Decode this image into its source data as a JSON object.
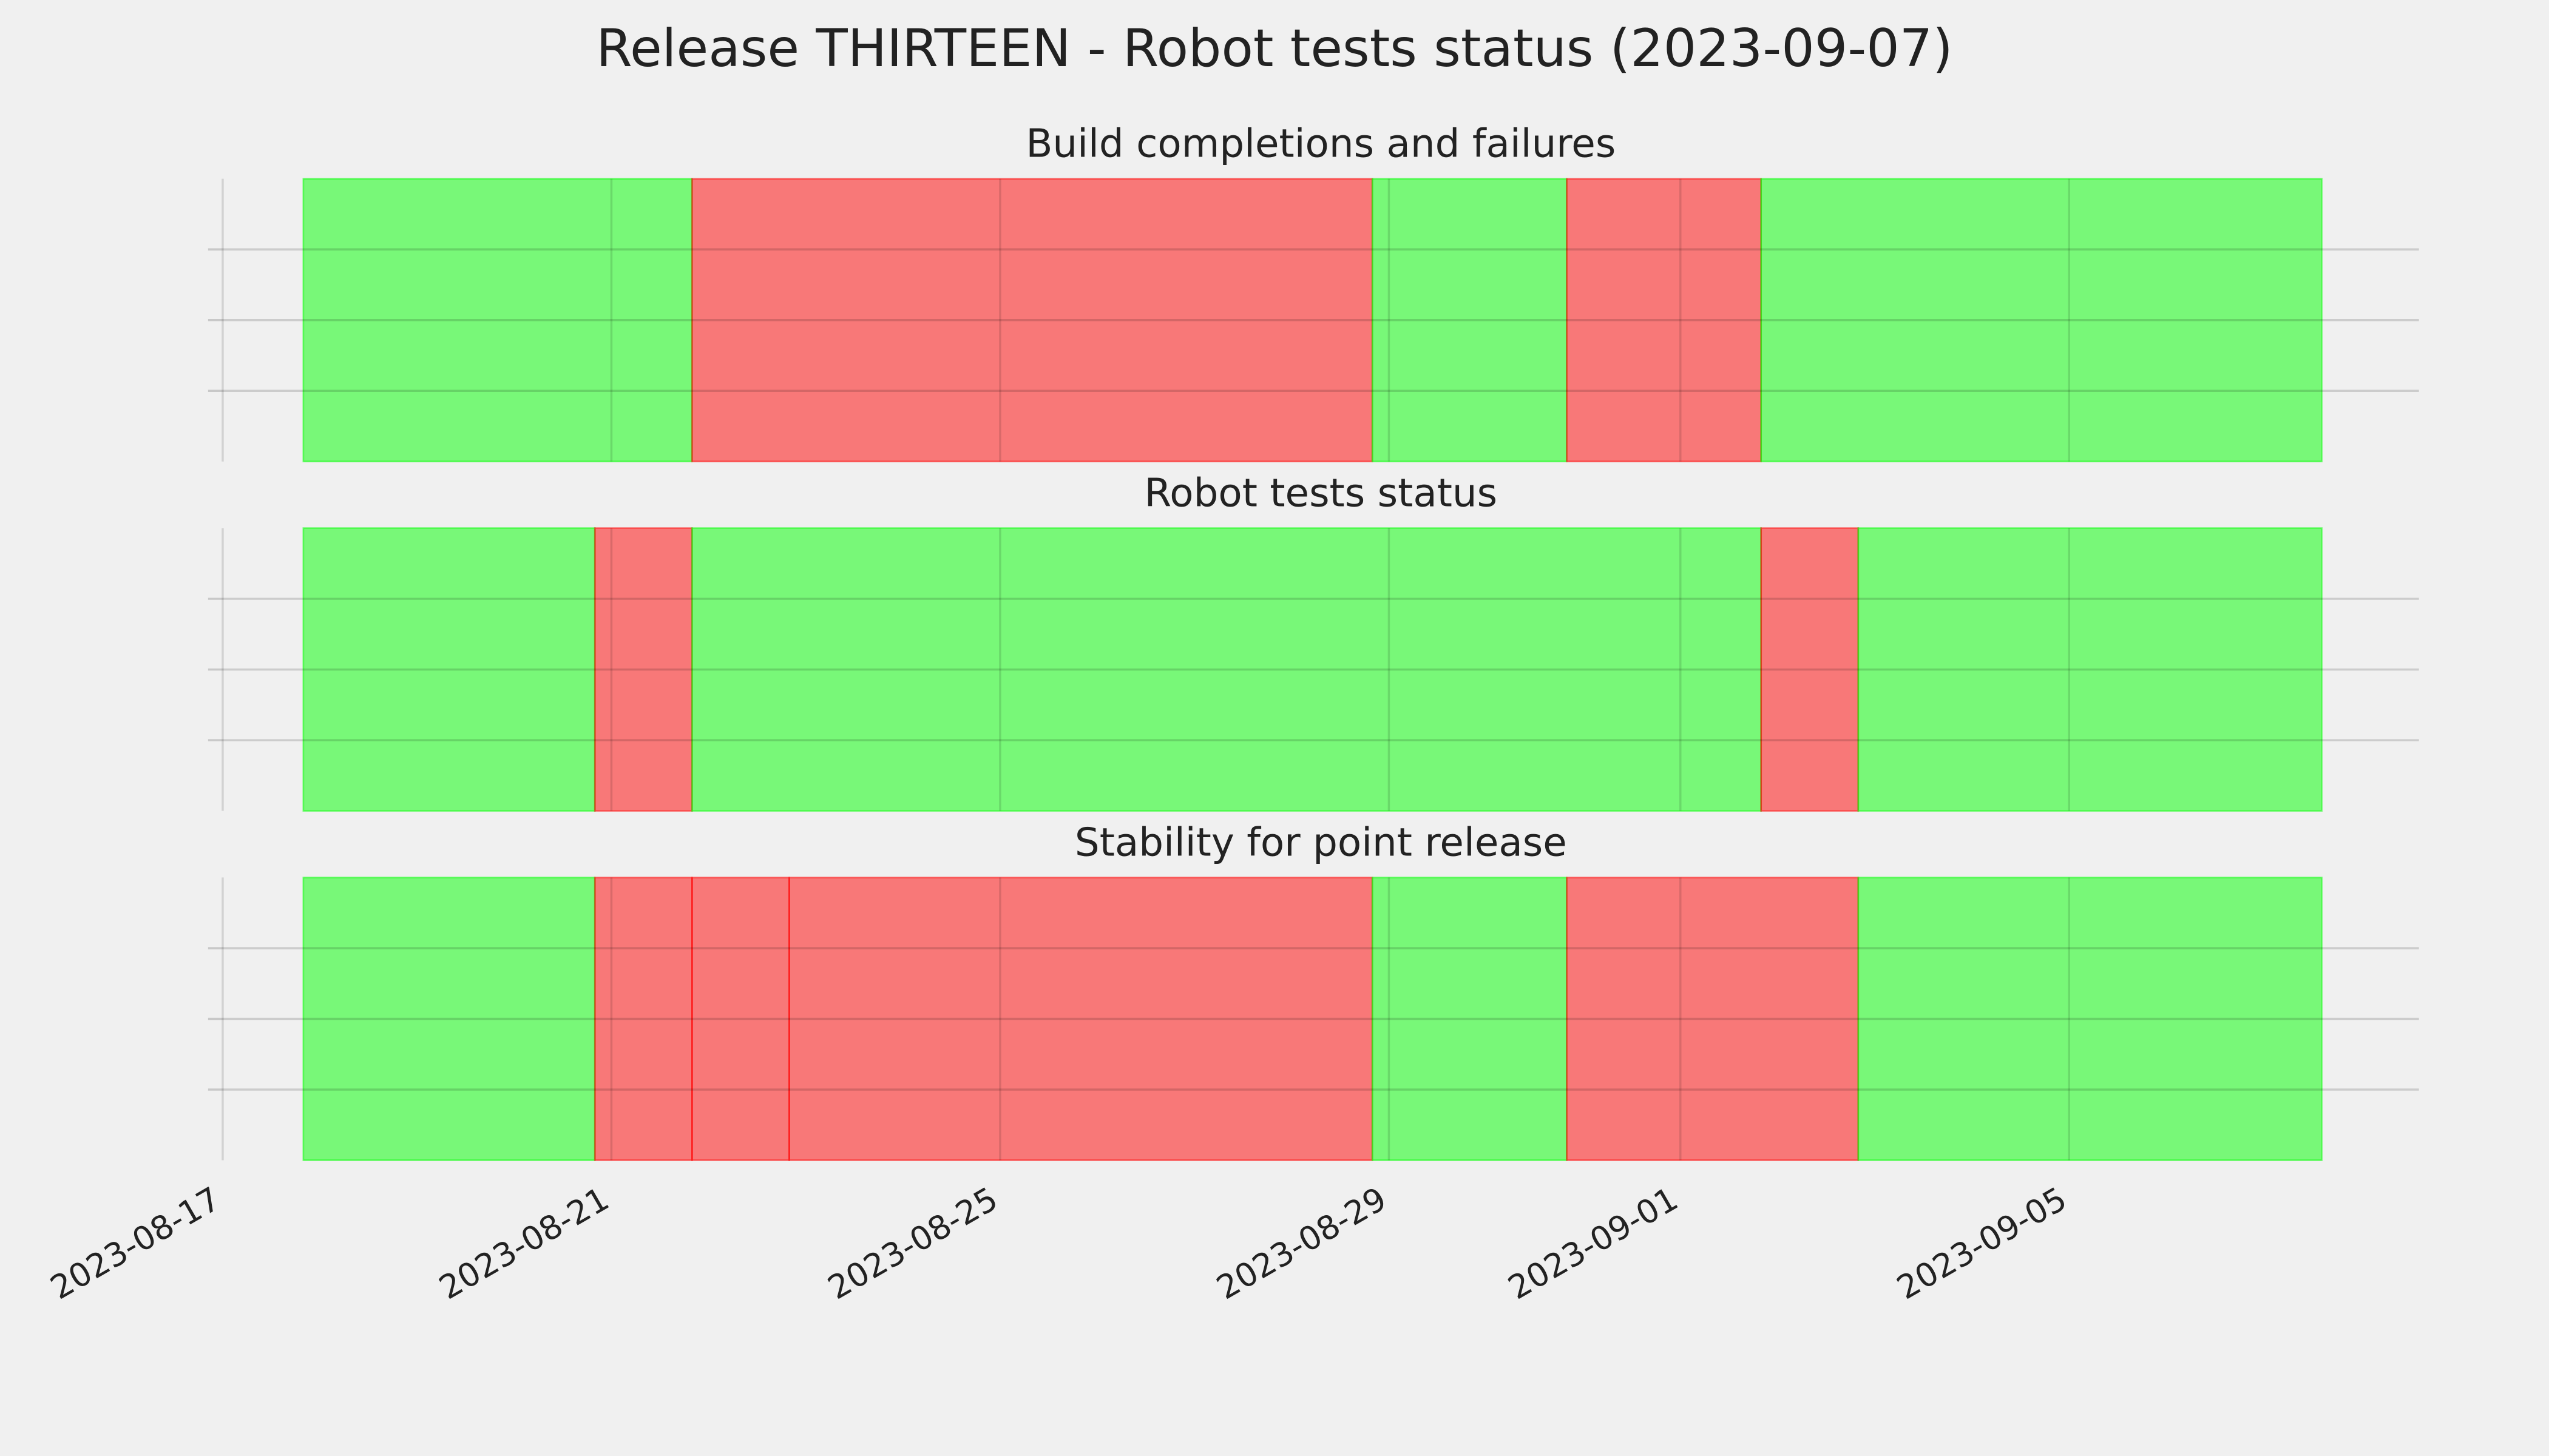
{
  "title": "Release THIRTEEN - Robot tests status (2023-09-07)",
  "chart_data": [
    {
      "type": "span",
      "title": "Build completions and failures",
      "xlim": [
        0,
        22.6
      ],
      "xticks": [
        0,
        4,
        8,
        12,
        15,
        19
      ],
      "show_xtick_labels": false,
      "ylim": [
        0,
        1
      ],
      "yticks": [
        0.25,
        0.5,
        0.75
      ],
      "show_ytick_labels": false,
      "grid": true,
      "alpha": 0.5,
      "spans": [
        {
          "start": 0.83,
          "end": 4.83,
          "color": "#00ff00"
        },
        {
          "start": 4.83,
          "end": 11.83,
          "color": "#ff0000"
        },
        {
          "start": 11.83,
          "end": 13.83,
          "color": "#00ff00"
        },
        {
          "start": 13.83,
          "end": 15.83,
          "color": "#ff0000"
        },
        {
          "start": 15.83,
          "end": 21.6,
          "color": "#00ff00"
        }
      ]
    },
    {
      "type": "span",
      "title": "Robot tests status",
      "xlim": [
        0,
        22.6
      ],
      "xticks": [
        0,
        4,
        8,
        12,
        15,
        19
      ],
      "show_xtick_labels": false,
      "ylim": [
        0,
        1
      ],
      "yticks": [
        0.25,
        0.5,
        0.75
      ],
      "show_ytick_labels": false,
      "grid": true,
      "alpha": 0.5,
      "spans": [
        {
          "start": 0.83,
          "end": 3.83,
          "color": "#00ff00"
        },
        {
          "start": 3.83,
          "end": 4.83,
          "color": "#ff0000"
        },
        {
          "start": 4.83,
          "end": 15.83,
          "color": "#00ff00"
        },
        {
          "start": 15.83,
          "end": 16.83,
          "color": "#ff0000"
        },
        {
          "start": 16.83,
          "end": 21.6,
          "color": "#00ff00"
        }
      ]
    },
    {
      "type": "span",
      "title": "Stability for point release",
      "xlim": [
        0,
        22.6
      ],
      "xticks": [
        {
          "value": 0,
          "label": "2023-08-17"
        },
        {
          "value": 4,
          "label": "2023-08-21"
        },
        {
          "value": 8,
          "label": "2023-08-25"
        },
        {
          "value": 12,
          "label": "2023-08-29"
        },
        {
          "value": 15,
          "label": "2023-09-01"
        },
        {
          "value": 19,
          "label": "2023-09-05"
        }
      ],
      "show_xtick_labels": true,
      "ylim": [
        0,
        1
      ],
      "yticks": [
        0.25,
        0.5,
        0.75
      ],
      "show_ytick_labels": false,
      "grid": true,
      "alpha": 0.5,
      "spans": [
        {
          "start": 0.83,
          "end": 3.83,
          "color": "#00ff00"
        },
        {
          "start": 3.83,
          "end": 4.83,
          "color": "#ff0000"
        },
        {
          "start": 4.83,
          "end": 5.83,
          "color": "#ff0000"
        },
        {
          "start": 5.83,
          "end": 11.83,
          "color": "#ff0000"
        },
        {
          "start": 11.83,
          "end": 13.83,
          "color": "#00ff00"
        },
        {
          "start": 13.83,
          "end": 16.83,
          "color": "#ff0000"
        },
        {
          "start": 16.83,
          "end": 21.6,
          "color": "#00ff00"
        }
      ]
    }
  ]
}
